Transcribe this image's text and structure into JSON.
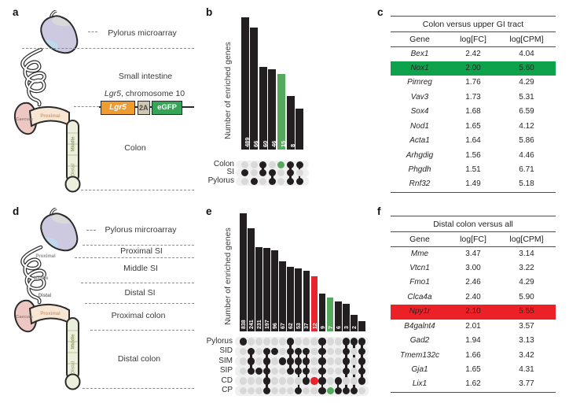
{
  "colors": {
    "bar_black": "#231f20",
    "bar_green": "#55a95c",
    "bar_red": "#e8252c",
    "dot_gray": "#d9d9d9",
    "highlight_green": "#0fa24c",
    "highlight_red": "#ec2127",
    "construct_orange": "#ef9b30",
    "construct_tan": "#cfc6b3",
    "construct_green": "#35a457"
  },
  "panel_a": {
    "letter": "a",
    "labels": {
      "pylorus": "Pylorus microarray",
      "small_intestine": "Small intestine",
      "colon": "Colon"
    },
    "construct_title_italic": "Lgr5",
    "construct_title_rest": ", chromosome 10",
    "construct": [
      {
        "name": "Lgr5"
      },
      {
        "name": "2A"
      },
      {
        "name": "eGFP"
      }
    ],
    "anatomy": {
      "caecum": "Caecum",
      "proximal_colon": "Proximal",
      "middle_colon": "Middle",
      "distal_colon": "Distal"
    }
  },
  "panel_b": {
    "letter": "b",
    "ylabel": "Number of enriched genes",
    "sets": [
      "Colon",
      "SI",
      "Pylorus"
    ],
    "bars": [
      {
        "label": "837",
        "value": 837,
        "members": [
          "SI"
        ]
      },
      {
        "label": "489",
        "value": 489,
        "members": [
          "Pylorus"
        ]
      },
      {
        "label": "66",
        "value": 66,
        "members": [
          "Colon",
          "SI"
        ]
      },
      {
        "label": "60",
        "value": 60,
        "members": [
          "SI",
          "Pylorus"
        ]
      },
      {
        "label": "46",
        "value": 46,
        "members": [
          "Colon"
        ],
        "color": "green"
      },
      {
        "label": "15",
        "value": 15,
        "members": [
          "Colon",
          "SI",
          "Pylorus"
        ]
      },
      {
        "label": "8",
        "value": 8,
        "members": [
          "Colon",
          "Pylorus"
        ]
      }
    ]
  },
  "panel_c": {
    "letter": "c",
    "title": "Colon versus upper GI tract",
    "columns": [
      "Gene",
      "log[FC]",
      "log[CPM]"
    ],
    "rows": [
      {
        "gene": "Bex1",
        "fc": "2.42",
        "cpm": "4.04"
      },
      {
        "gene": "Nox1",
        "fc": "2.00",
        "cpm": "5.60",
        "highlight": "green"
      },
      {
        "gene": "Pimreg",
        "fc": "1.76",
        "cpm": "4.29"
      },
      {
        "gene": "Vav3",
        "fc": "1.73",
        "cpm": "5.31"
      },
      {
        "gene": "Sox4",
        "fc": "1.68",
        "cpm": "6.59"
      },
      {
        "gene": "Nod1",
        "fc": "1.65",
        "cpm": "4.12"
      },
      {
        "gene": "Acta1",
        "fc": "1.64",
        "cpm": "5.86"
      },
      {
        "gene": "Arhgdig",
        "fc": "1.56",
        "cpm": "4.46"
      },
      {
        "gene": "Phgdh",
        "fc": "1.51",
        "cpm": "6.71"
      },
      {
        "gene": "Rnf32",
        "fc": "1.49",
        "cpm": "5.18"
      }
    ]
  },
  "panel_d": {
    "letter": "d",
    "labels": [
      "Pylorus mircroarray",
      "Proximal SI",
      "Middle SI",
      "Distal SI",
      "Proximal colon",
      "Distal colon"
    ],
    "anatomy": {
      "proximal_si": "Proximal",
      "middle_si": "Middle",
      "distal_si": "Distal",
      "caecum": "Caecum",
      "proximal_colon": "Proximal",
      "middle_colon": "Middle",
      "distal_colon": "Distal"
    }
  },
  "panel_e": {
    "letter": "e",
    "ylabel": "Number of enriched genes",
    "sets": [
      "Pylorus",
      "SID",
      "SIM",
      "SIP",
      "CD",
      "CP"
    ],
    "bars": [
      {
        "label": "2,226",
        "value": 2226,
        "members": [
          "Pylorus"
        ]
      },
      {
        "label": "838",
        "value": 838,
        "members": [
          "SID",
          "SIM",
          "SIP"
        ]
      },
      {
        "label": "241",
        "value": 241,
        "members": [
          "SIP"
        ]
      },
      {
        "label": "231",
        "value": 231,
        "members": [
          "SID",
          "SIM",
          "SIP",
          "CD",
          "CP"
        ]
      },
      {
        "label": "197",
        "value": 197,
        "members": [
          "SID"
        ]
      },
      {
        "label": "96",
        "value": 96,
        "members": [
          "SIM"
        ]
      },
      {
        "label": "67",
        "value": 67,
        "members": [
          "Pylorus",
          "SID",
          "SIM",
          "SIP"
        ]
      },
      {
        "label": "62",
        "value": 62,
        "members": [
          "SID",
          "SIM",
          "SIP",
          "CP"
        ]
      },
      {
        "label": "53",
        "value": 53,
        "members": [
          "SID",
          "SIM",
          "SIP",
          "CD"
        ]
      },
      {
        "label": "37",
        "value": 37,
        "members": [
          "CD"
        ],
        "color": "red"
      },
      {
        "label": "12",
        "value": 12,
        "members": [
          "Pylorus",
          "SID",
          "SIM",
          "SIP",
          "CD",
          "CP"
        ]
      },
      {
        "label": "9",
        "value": 9,
        "members": [
          "CP"
        ],
        "color": "green"
      },
      {
        "label": "7",
        "value": 7,
        "members": [
          "CD",
          "CP"
        ]
      },
      {
        "label": "6",
        "value": 6,
        "members": [
          "Pylorus",
          "SID",
          "SIM",
          "SIP",
          "CP"
        ]
      },
      {
        "label": "3",
        "value": 3,
        "members": [
          "Pylorus",
          "CP"
        ]
      },
      {
        "label": "2",
        "value": 2,
        "members": [
          "Pylorus",
          "SID",
          "SIM",
          "SIP",
          "CD"
        ]
      }
    ]
  },
  "panel_f": {
    "letter": "f",
    "title": "Distal colon versus all",
    "columns": [
      "Gene",
      "log[FC]",
      "log[CPM]"
    ],
    "rows": [
      {
        "gene": "Mme",
        "fc": "3.47",
        "cpm": "3.14"
      },
      {
        "gene": "Vtcn1",
        "fc": "3.00",
        "cpm": "3.22"
      },
      {
        "gene": "Fmo1",
        "fc": "2.46",
        "cpm": "4.29"
      },
      {
        "gene": "Clca4a",
        "fc": "2.40",
        "cpm": "5.90"
      },
      {
        "gene": "Npy1r",
        "fc": "2.10",
        "cpm": "5.55",
        "highlight": "red"
      },
      {
        "gene": "B4galnt4",
        "fc": "2.01",
        "cpm": "3.57"
      },
      {
        "gene": "Gad2",
        "fc": "1.94",
        "cpm": "3.13"
      },
      {
        "gene": "Tmem132c",
        "fc": "1.66",
        "cpm": "3.42"
      },
      {
        "gene": "Gja1",
        "fc": "1.65",
        "cpm": "4.31"
      },
      {
        "gene": "Lix1",
        "fc": "1.62",
        "cpm": "3.77"
      }
    ]
  },
  "chart_data": [
    {
      "type": "bar",
      "subtype": "upset",
      "panel": "b",
      "title": "",
      "xlabel": "",
      "ylabel": "Number of enriched genes",
      "yscale": "log10",
      "grid": false,
      "sets": [
        "Colon",
        "SI",
        "Pylorus"
      ],
      "categories": [
        "SI",
        "Pylorus",
        "Colon+SI",
        "SI+Pylorus",
        "Colon",
        "Colon+SI+Pylorus",
        "Colon+Pylorus"
      ],
      "values": [
        837,
        489,
        66,
        60,
        46,
        15,
        8
      ],
      "bar_colors": [
        "black",
        "black",
        "black",
        "black",
        "green",
        "black",
        "black"
      ]
    },
    {
      "type": "bar",
      "subtype": "upset",
      "panel": "e",
      "title": "",
      "xlabel": "",
      "ylabel": "Number of enriched genes",
      "yscale": "log10",
      "grid": false,
      "sets": [
        "Pylorus",
        "SID",
        "SIM",
        "SIP",
        "CD",
        "CP"
      ],
      "categories": [
        "Pylorus",
        "SID+SIM+SIP",
        "SIP",
        "SID+SIM+SIP+CD+CP",
        "SID",
        "SIM",
        "Pylorus+SID+SIM+SIP",
        "SID+SIM+SIP+CP",
        "SID+SIM+SIP+CD",
        "CD",
        "Pylorus+SID+SIM+SIP+CD+CP",
        "CP",
        "CD+CP",
        "Pylorus+SID+SIM+SIP+CP",
        "Pylorus+CP",
        "Pylorus+SID+SIM+SIP+CD"
      ],
      "values": [
        2226,
        838,
        241,
        231,
        197,
        96,
        67,
        62,
        53,
        37,
        12,
        9,
        7,
        6,
        3,
        2
      ],
      "bar_colors": [
        "black",
        "black",
        "black",
        "black",
        "black",
        "black",
        "black",
        "black",
        "black",
        "red",
        "black",
        "green",
        "black",
        "black",
        "black",
        "black"
      ]
    }
  ]
}
